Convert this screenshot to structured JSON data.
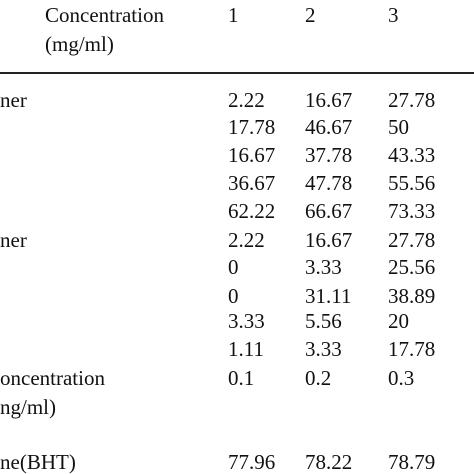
{
  "header": {
    "label_lines": [
      "Concentration",
      "(mg/ml)"
    ],
    "columns": [
      "1",
      "2",
      "3"
    ]
  },
  "rows": [
    {
      "label": [
        "ner"
      ],
      "cells": [
        2.22,
        16.67,
        27.78
      ]
    },
    {
      "cells": [
        17.78,
        46.67,
        50
      ]
    },
    {
      "cells": [
        16.67,
        37.78,
        43.33
      ]
    },
    {
      "cells": [
        36.67,
        47.78,
        55.56
      ]
    },
    {
      "cells": [
        62.22,
        66.67,
        73.33
      ]
    },
    {
      "label": [
        "ner"
      ],
      "cells": [
        2.22,
        16.67,
        27.78
      ]
    },
    {
      "cells": [
        0,
        3.33,
        25.56
      ]
    },
    {
      "cells": [
        0,
        31.11,
        38.89
      ]
    },
    {
      "cells": [
        3.33,
        5.56,
        20
      ]
    },
    {
      "cells": [
        1.11,
        3.33,
        17.78
      ]
    },
    {
      "label": [
        "oncentration",
        "ng/ml)"
      ],
      "cells": [
        0.1,
        0.2,
        0.3
      ]
    },
    {
      "label": [
        "ne(BHT)"
      ],
      "cells": [
        77.96,
        78.22,
        78.79
      ]
    }
  ]
}
